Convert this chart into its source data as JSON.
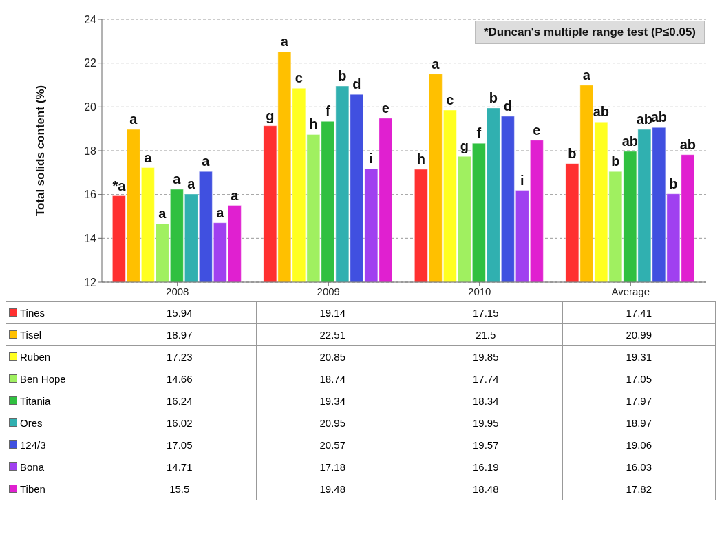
{
  "chart_data": {
    "type": "bar",
    "ylabel": "Total solids content (%)",
    "categories": [
      "2008",
      "2009",
      "2010",
      "Average"
    ],
    "series": [
      {
        "name": "Tines",
        "color": "#ff3030",
        "values": [
          15.94,
          19.14,
          17.15,
          17.41
        ]
      },
      {
        "name": "Tisel",
        "color": "#ffc000",
        "values": [
          18.97,
          22.51,
          21.5,
          20.99
        ]
      },
      {
        "name": "Ruben",
        "color": "#ffff20",
        "values": [
          17.23,
          20.85,
          19.85,
          19.31
        ]
      },
      {
        "name": "Ben Hope",
        "color": "#a0f060",
        "values": [
          14.66,
          18.74,
          17.74,
          17.05
        ]
      },
      {
        "name": "Titania",
        "color": "#30c040",
        "values": [
          16.24,
          19.34,
          18.34,
          17.97
        ]
      },
      {
        "name": "Ores",
        "color": "#30b0b0",
        "values": [
          16.02,
          20.95,
          19.95,
          18.97
        ]
      },
      {
        "name": "124/3",
        "color": "#4050e0",
        "values": [
          17.05,
          20.57,
          19.57,
          19.06
        ]
      },
      {
        "name": "Bona",
        "color": "#a040f0",
        "values": [
          14.71,
          17.18,
          16.19,
          16.03
        ]
      },
      {
        "name": "Tiben",
        "color": "#e020d0",
        "values": [
          15.5,
          19.48,
          18.48,
          17.82
        ]
      }
    ],
    "ylim": [
      12,
      24
    ],
    "yticks": [
      12,
      14,
      16,
      18,
      20,
      22,
      24
    ],
    "grid": "y",
    "legend": "bottom",
    "data_labels": true,
    "annotations": [
      "*a",
      "a",
      "a",
      "a",
      "a",
      "a",
      "a",
      "a",
      "a",
      "g",
      "a",
      "c",
      "h",
      "f",
      "b",
      "d",
      "i",
      "e",
      "h",
      "a",
      "c",
      "g",
      "f",
      "b",
      "d",
      "i",
      "e",
      "b",
      "a",
      "ab",
      "b",
      "ab",
      "ab",
      "ab",
      "b",
      "ab",
      "*Duncan's multiple range test (P≤0.05)"
    ]
  }
}
